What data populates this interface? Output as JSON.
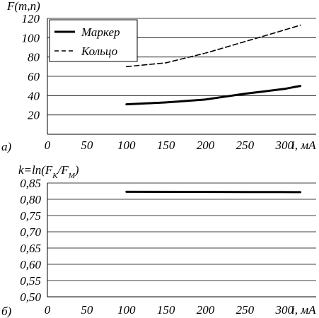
{
  "chart_data": [
    {
      "type": "line",
      "panel_label": "а)",
      "ylabel": "F(m,n)",
      "xlabel": "i, мА",
      "x_ticks": [
        "0",
        "50",
        "100",
        "150",
        "200",
        "250",
        "300"
      ],
      "y_ticks": [
        "20",
        "40",
        "60",
        "80",
        "100",
        "120"
      ],
      "xlim": [
        0,
        340
      ],
      "ylim": [
        0,
        120
      ],
      "grid": true,
      "legend_position": "top-left",
      "series": [
        {
          "name": "Маркер",
          "style": "solid",
          "x": [
            100,
            150,
            200,
            250,
            300,
            320
          ],
          "y": [
            31,
            33,
            36,
            42,
            47,
            50
          ]
        },
        {
          "name": "Кольцо",
          "style": "dashed",
          "x": [
            100,
            150,
            200,
            250,
            300,
            320
          ],
          "y": [
            70,
            74,
            84,
            96,
            108,
            113
          ]
        }
      ]
    },
    {
      "type": "line",
      "panel_label": "б)",
      "ylabel": "k=ln(F",
      "ylabel_sub1": "K",
      "ylabel_mid": "/F",
      "ylabel_sub2": "M",
      "ylabel_end": ")",
      "xlabel": "i, мА",
      "x_ticks": [
        "0",
        "50",
        "100",
        "150",
        "200",
        "250",
        "300"
      ],
      "y_ticks": [
        "0,50",
        "0,55",
        "0,60",
        "0,65",
        "0,70",
        "0,75",
        "0,80",
        "0,85"
      ],
      "xlim": [
        0,
        340
      ],
      "ylim": [
        0.5,
        0.85
      ],
      "grid": true,
      "series": [
        {
          "style": "solid",
          "x": [
            100,
            320
          ],
          "y": [
            0.823,
            0.822
          ]
        }
      ]
    }
  ]
}
